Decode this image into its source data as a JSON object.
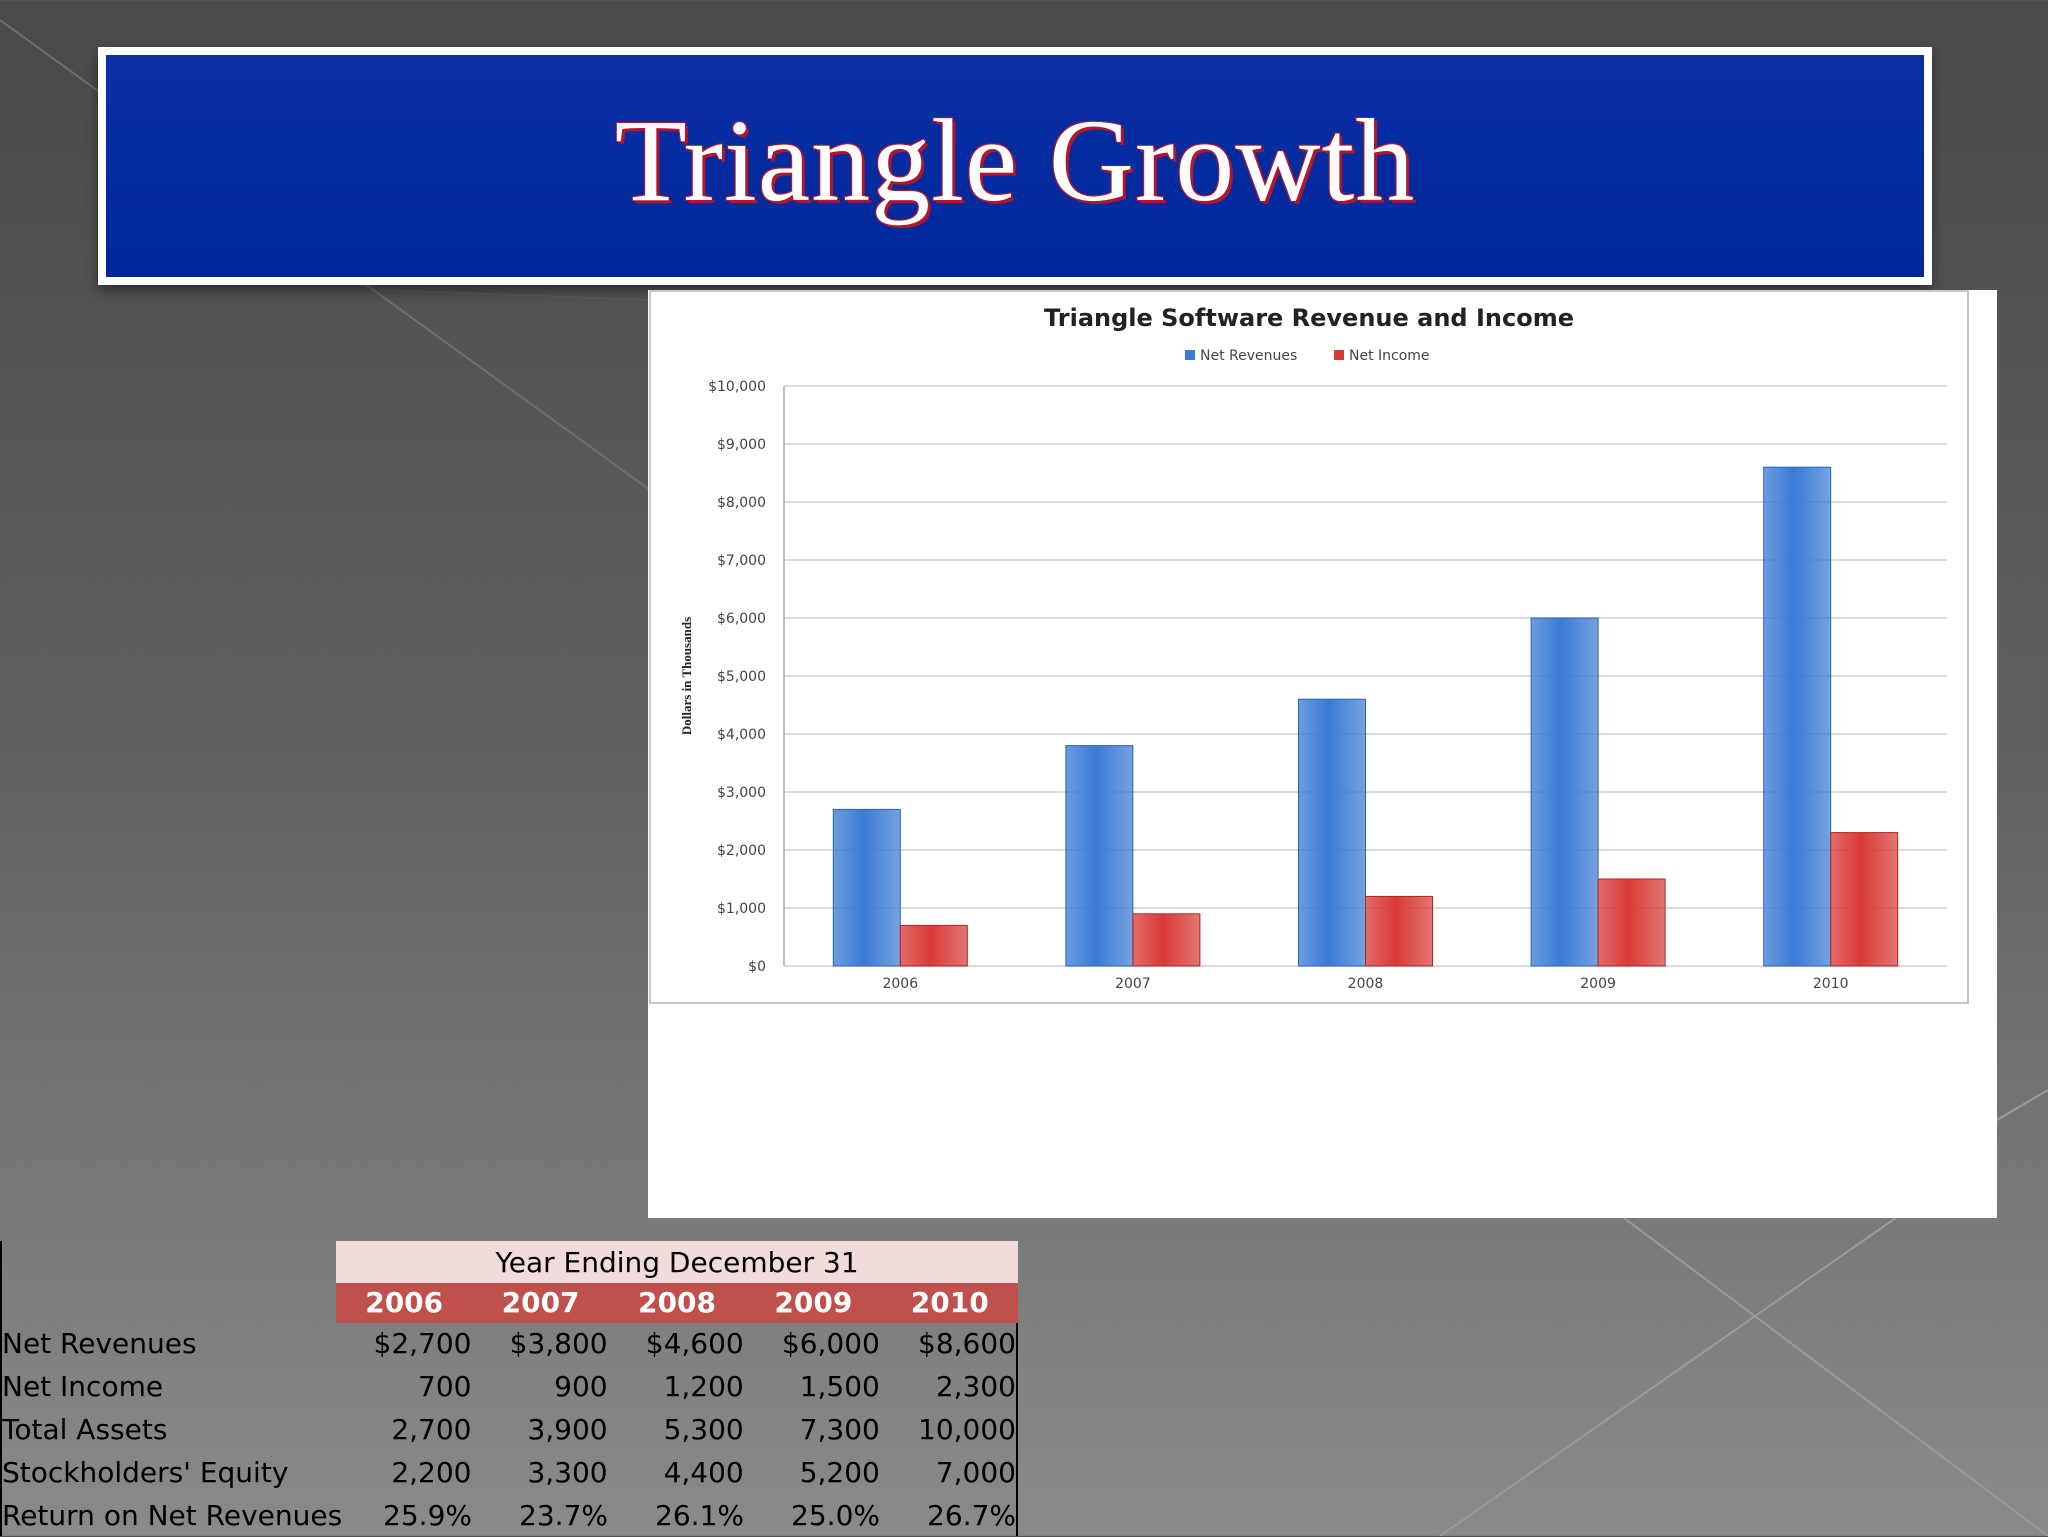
{
  "slide": {
    "title": "Triangle Growth"
  },
  "chart_data": {
    "type": "bar",
    "title": "Triangle Software Revenue and Income",
    "xlabel": "",
    "ylabel": "Dollars in Thousands",
    "ylim": [
      0,
      10000
    ],
    "yticks": [
      "$0",
      "$1,000",
      "$2,000",
      "$3,000",
      "$4,000",
      "$5,000",
      "$6,000",
      "$7,000",
      "$8,000",
      "$9,000",
      "$10,000"
    ],
    "ytick_values": [
      0,
      1000,
      2000,
      3000,
      4000,
      5000,
      6000,
      7000,
      8000,
      9000,
      10000
    ],
    "categories": [
      "2006",
      "2007",
      "2008",
      "2009",
      "2010"
    ],
    "series": [
      {
        "name": "Net Revenues",
        "color": "#3a7bd5",
        "values": [
          2700,
          3800,
          4600,
          6000,
          8600
        ]
      },
      {
        "name": "Net Income",
        "color": "#d83a36",
        "values": [
          700,
          900,
          1200,
          1500,
          2300
        ]
      }
    ],
    "grid": true,
    "legend": "top-center"
  },
  "table": {
    "header": "Year Ending December 31",
    "years": [
      "2006",
      "2007",
      "2008",
      "2009",
      "2010"
    ],
    "rows": [
      {
        "label": "Net Revenues",
        "values": [
          "$2,700",
          "$3,800",
          "$4,600",
          "$6,000",
          "$8,600"
        ]
      },
      {
        "label": "Net Income",
        "values": [
          "700",
          "900",
          "1,200",
          "1,500",
          "2,300"
        ]
      },
      {
        "label": "Total Assets",
        "values": [
          "2,700",
          "3,900",
          "5,300",
          "7,300",
          "10,000"
        ]
      },
      {
        "label": "Stockholders' Equity",
        "values": [
          "2,200",
          "3,300",
          "4,400",
          "5,200",
          "7,000"
        ]
      },
      {
        "label": "Return on Net Revenues",
        "values": [
          "25.9%",
          "23.7%",
          "26.1%",
          "25.0%",
          "26.7%"
        ]
      }
    ]
  }
}
